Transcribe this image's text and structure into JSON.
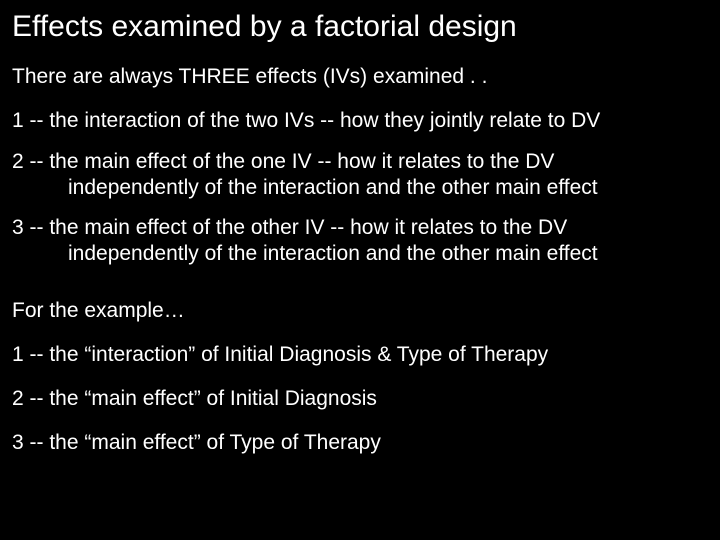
{
  "title": "Effects examined by a factorial design",
  "intro": "There are always THREE effects (IVs) examined . .",
  "item1a": "1 -- the interaction of the two IVs -- how they jointly relate to DV",
  "item2a": "2 -- the main effect of the one IV -- how it relates to the DV",
  "item2b": "independently of the interaction and the other main effect",
  "item3a": "3 -- the main effect of the other IV -- how it relates to the DV",
  "item3b": "independently of the interaction and the other main effect",
  "forexample": "For the example…",
  "ex1": "1 --  the “interaction” of Initial Diagnosis & Type of Therapy",
  "ex2": "2 --  the “main effect” of Initial Diagnosis",
  "ex3": "3 --  the “main effect” of Type of Therapy",
  "colors": {
    "bg": "#000000",
    "text": "#ffffff"
  },
  "typography": {
    "title_fontsize": 30,
    "body_fontsize": 21,
    "family": "Arial"
  }
}
